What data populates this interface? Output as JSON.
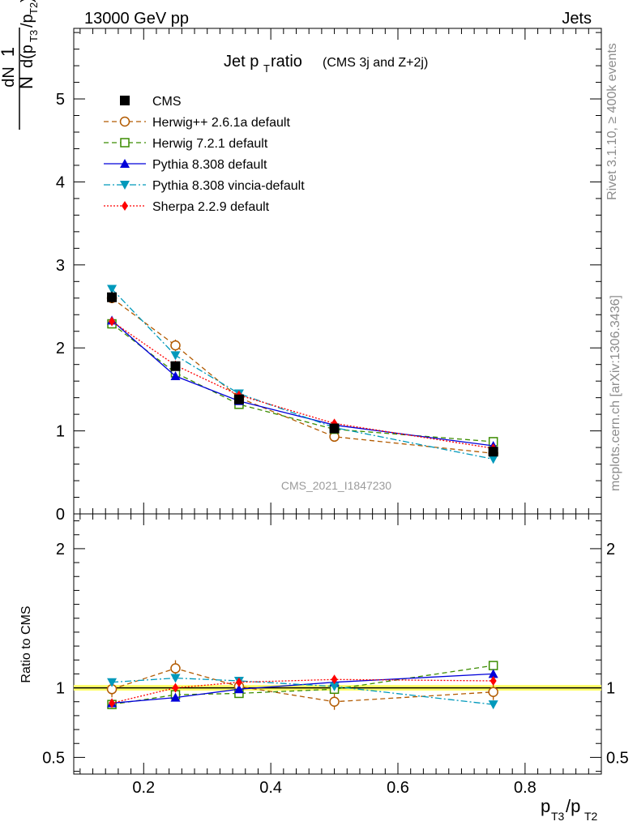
{
  "header": {
    "left": "13000 GeV pp",
    "right": "Jets"
  },
  "side_labels": {
    "rivet": "Rivet 3.1.10, ≥ 400k events",
    "mcplots": "mcplots.cern.ch [arXiv:1306.3436]"
  },
  "watermark": "CMS_2021_I1847230",
  "chart_data": {
    "type": "line",
    "title_main": "Jet p",
    "title_sub": "T",
    "title_rest": " ratio",
    "title_small": "(CMS 3j and Z+2j)",
    "xlabel": "p_T3/p_T2",
    "ylabel_top": "1/N dN/d(p_T3/p_T2)",
    "ylabel_ratio": "Ratio to CMS",
    "xlim": [
      0.09,
      0.92
    ],
    "ylim_main": [
      0,
      5.85
    ],
    "ylim_ratio": [
      0.38,
      2.25
    ],
    "x": [
      0.15,
      0.25,
      0.35,
      0.5,
      0.75
    ],
    "xticks": [
      0.2,
      0.4,
      0.6,
      0.8
    ],
    "xtick_labels": [
      "0.2",
      "0.4",
      "0.6",
      "0.8"
    ],
    "yticks_main": [
      0,
      1,
      2,
      3,
      4,
      5
    ],
    "ytick_labels_main": [
      "0",
      "1",
      "2",
      "3",
      "4",
      "5"
    ],
    "yticks_ratio": [
      0.5,
      1,
      2
    ],
    "ytick_labels_ratio": [
      "0.5",
      "1",
      "2"
    ],
    "series": [
      {
        "name": "CMS",
        "color": "#000000",
        "marker": "square-filled",
        "dash": "none",
        "values": [
          2.61,
          1.78,
          1.38,
          1.03,
          0.75
        ],
        "errors": [
          0.07,
          0.05,
          0.04,
          0.03,
          0.03
        ]
      },
      {
        "name": "Herwig++ 2.6.1a default",
        "color": "#b25a00",
        "marker": "circle-open",
        "dash": "6,4",
        "values": [
          2.6,
          2.03,
          1.4,
          0.93,
          0.73
        ],
        "errors": [
          0.05,
          0.07,
          0.03,
          0.04,
          0.02
        ],
        "ratio": [
          0.99,
          1.14,
          1.01,
          0.9,
          0.97
        ]
      },
      {
        "name": "Herwig 7.2.1 default",
        "color": "#3b8c00",
        "marker": "square-open",
        "dash": "6,4",
        "values": [
          2.29,
          1.7,
          1.32,
          1.02,
          0.87
        ],
        "errors": [
          0.02,
          0.02,
          0.02,
          0.02,
          0.02
        ],
        "ratio": [
          0.88,
          0.95,
          0.96,
          0.99,
          1.16
        ]
      },
      {
        "name": "Pythia 8.308 default",
        "color": "#0000d9",
        "marker": "triangle-up-filled",
        "dash": "none",
        "values": [
          2.33,
          1.66,
          1.36,
          1.07,
          0.82
        ],
        "errors": [
          0.02,
          0.02,
          0.02,
          0.02,
          0.02
        ],
        "ratio": [
          0.89,
          0.93,
          0.99,
          1.04,
          1.1
        ]
      },
      {
        "name": "Pythia 8.308 vincia-default",
        "color": "#0099bb",
        "marker": "triangle-down-filled",
        "dash": "8,3,2,3",
        "values": [
          2.71,
          1.91,
          1.45,
          1.04,
          0.66
        ],
        "errors": [
          0.02,
          0.02,
          0.02,
          0.02,
          0.02
        ],
        "ratio": [
          1.04,
          1.07,
          1.05,
          1.01,
          0.88
        ]
      },
      {
        "name": "Sherpa 2.2.9 default",
        "color": "#ff0000",
        "marker": "diamond-filled",
        "dash": "2,2",
        "values": [
          2.32,
          1.79,
          1.43,
          1.09,
          0.79
        ],
        "errors": [
          0.02,
          0.02,
          0.02,
          0.02,
          0.02
        ],
        "ratio": [
          0.89,
          1.0,
          1.04,
          1.06,
          1.05
        ]
      }
    ]
  }
}
